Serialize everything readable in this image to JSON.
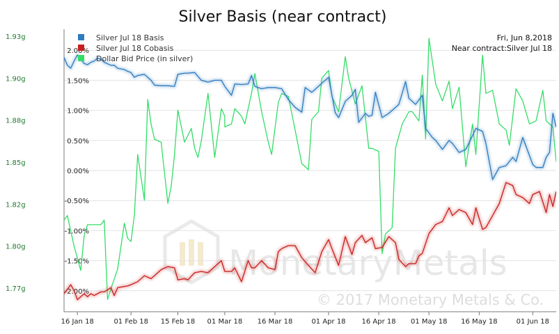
{
  "chart_data": {
    "type": "line",
    "title": "Silver Basis (near contract)",
    "left_axis": {
      "ticks": [
        "1.77g",
        "1.80g",
        "1.82g",
        "1.85g",
        "1.88g",
        "1.90g",
        "1.93g"
      ],
      "color": "#1f7a2e",
      "ylim": [
        1.757,
        1.942
      ]
    },
    "right_axis": {
      "ticks": [
        "-2.00%",
        "-1.50%",
        "-1.00%",
        "-0.50%",
        "0.00%",
        "0.50%",
        "1.00%",
        "1.50%",
        "2.00%"
      ],
      "values": [
        -2.0,
        -1.5,
        -1.0,
        -0.5,
        0.0,
        0.5,
        1.0,
        1.5,
        2.0
      ],
      "ylim": [
        -2.35,
        2.35
      ]
    },
    "x_axis": {
      "ticks": [
        "16 Jan 18",
        "01 Feb 18",
        "15 Feb 18",
        "01 Mar 18",
        "16 Mar 18",
        "01 Apr 18",
        "16 Apr 18",
        "01 May 18",
        "16 May 18",
        "01 Jun 18"
      ],
      "tick_dates": [
        "2018-01-16",
        "2018-02-01",
        "2018-02-15",
        "2018-03-01",
        "2018-03-16",
        "2018-04-01",
        "2018-04-16",
        "2018-05-01",
        "2018-05-16",
        "2018-06-01"
      ],
      "xlim": [
        "2018-01-12",
        "2018-06-08"
      ]
    },
    "legend": {
      "placement": "top-left",
      "entries": [
        "Silver Jul 18 Basis",
        "Silver Jul 18 Cobasis",
        "Dollar Bid Price (in silver)"
      ]
    },
    "info_box": {
      "date": "Fri, Jun 8,2018",
      "contract": "Near contract:Silver Jul 18"
    },
    "watermark": {
      "brand": "MonetaryMetals",
      "copyright": "© 2017 Monetary Metals & Co."
    },
    "series": [
      {
        "name": "Silver Jul 18 Basis",
        "color": "#2f7bbf",
        "axis": "right",
        "x": [
          "2018-01-12",
          "2018-01-13",
          "2018-01-14",
          "2018-01-15",
          "2018-01-16",
          "2018-01-17",
          "2018-01-18",
          "2018-01-19",
          "2018-01-20",
          "2018-01-21",
          "2018-01-22",
          "2018-01-23",
          "2018-01-24",
          "2018-01-26",
          "2018-01-27",
          "2018-01-28",
          "2018-01-30",
          "2018-01-31",
          "2018-02-01",
          "2018-02-02",
          "2018-02-03",
          "2018-02-05",
          "2018-02-06",
          "2018-02-07",
          "2018-02-08",
          "2018-02-10",
          "2018-02-12",
          "2018-02-14",
          "2018-02-15",
          "2018-02-17",
          "2018-02-18",
          "2018-02-20",
          "2018-02-22",
          "2018-02-24",
          "2018-02-26",
          "2018-02-28",
          "2018-03-01",
          "2018-03-03",
          "2018-03-04",
          "2018-03-06",
          "2018-03-08",
          "2018-03-09",
          "2018-03-10",
          "2018-03-12",
          "2018-03-14",
          "2018-03-16",
          "2018-03-18",
          "2018-03-20",
          "2018-03-22",
          "2018-03-24",
          "2018-03-25",
          "2018-03-27",
          "2018-03-28",
          "2018-03-30",
          "2018-04-01",
          "2018-04-03",
          "2018-04-04",
          "2018-04-06",
          "2018-04-08",
          "2018-04-09",
          "2018-04-10",
          "2018-04-12",
          "2018-04-13",
          "2018-04-14",
          "2018-04-15",
          "2018-04-17",
          "2018-04-19",
          "2018-04-20",
          "2018-04-22",
          "2018-04-24",
          "2018-04-25",
          "2018-04-26",
          "2018-04-27",
          "2018-04-29",
          "2018-04-30",
          "2018-05-02",
          "2018-05-03",
          "2018-05-05",
          "2018-05-07",
          "2018-05-08",
          "2018-05-10",
          "2018-05-12",
          "2018-05-14",
          "2018-05-15",
          "2018-05-17",
          "2018-05-18",
          "2018-05-20",
          "2018-05-22",
          "2018-05-24",
          "2018-05-26",
          "2018-05-27",
          "2018-05-29",
          "2018-05-31",
          "2018-06-01",
          "2018-06-02",
          "2018-06-04",
          "2018-06-05",
          "2018-06-06",
          "2018-06-07",
          "2018-06-08"
        ],
        "values": [
          1.88,
          1.75,
          1.7,
          1.82,
          1.92,
          1.85,
          1.78,
          1.76,
          1.8,
          1.82,
          1.87,
          1.85,
          1.8,
          1.75,
          1.75,
          1.7,
          1.68,
          1.65,
          1.63,
          1.55,
          1.58,
          1.6,
          1.55,
          1.5,
          1.42,
          1.41,
          1.41,
          1.4,
          1.6,
          1.62,
          1.62,
          1.63,
          1.5,
          1.47,
          1.5,
          1.5,
          1.4,
          1.25,
          1.44,
          1.43,
          1.44,
          1.58,
          1.4,
          1.36,
          1.38,
          1.38,
          1.36,
          1.18,
          1.05,
          0.97,
          1.38,
          1.3,
          1.35,
          1.45,
          1.55,
          0.96,
          0.88,
          1.15,
          1.25,
          1.35,
          0.8,
          0.95,
          0.9,
          0.92,
          1.3,
          0.88,
          0.95,
          1.0,
          1.1,
          1.48,
          1.2,
          1.15,
          1.1,
          1.25,
          0.7,
          0.55,
          0.5,
          0.35,
          0.5,
          0.45,
          0.3,
          0.35,
          0.58,
          0.7,
          0.65,
          0.45,
          -0.15,
          0.05,
          0.08,
          0.22,
          0.15,
          0.55,
          0.25,
          0.1,
          0.05,
          0.05,
          0.22,
          0.3,
          0.95,
          0.72
        ]
      },
      {
        "name": "Silver Jul 18 Cobasis",
        "color": "#c8201e",
        "axis": "right",
        "x": [
          "2018-01-12",
          "2018-01-14",
          "2018-01-15",
          "2018-01-16",
          "2018-01-18",
          "2018-01-19",
          "2018-01-20",
          "2018-01-21",
          "2018-01-23",
          "2018-01-24",
          "2018-01-26",
          "2018-01-27",
          "2018-01-28",
          "2018-01-30",
          "2018-01-31",
          "2018-02-01",
          "2018-02-03",
          "2018-02-05",
          "2018-02-07",
          "2018-02-08",
          "2018-02-10",
          "2018-02-12",
          "2018-02-14",
          "2018-02-15",
          "2018-02-17",
          "2018-02-18",
          "2018-02-20",
          "2018-02-22",
          "2018-02-24",
          "2018-02-26",
          "2018-02-28",
          "2018-03-01",
          "2018-03-03",
          "2018-03-04",
          "2018-03-06",
          "2018-03-08",
          "2018-03-09",
          "2018-03-10",
          "2018-03-12",
          "2018-03-14",
          "2018-03-16",
          "2018-03-17",
          "2018-03-18",
          "2018-03-20",
          "2018-03-22",
          "2018-03-24",
          "2018-03-26",
          "2018-03-28",
          "2018-03-30",
          "2018-04-01",
          "2018-04-02",
          "2018-04-04",
          "2018-04-06",
          "2018-04-08",
          "2018-04-09",
          "2018-04-11",
          "2018-04-12",
          "2018-04-14",
          "2018-04-15",
          "2018-04-17",
          "2018-04-19",
          "2018-04-21",
          "2018-04-22",
          "2018-04-24",
          "2018-04-25",
          "2018-04-27",
          "2018-04-28",
          "2018-04-29",
          "2018-05-01",
          "2018-05-03",
          "2018-05-05",
          "2018-05-07",
          "2018-05-08",
          "2018-05-10",
          "2018-05-12",
          "2018-05-14",
          "2018-05-15",
          "2018-05-17",
          "2018-05-18",
          "2018-05-20",
          "2018-05-22",
          "2018-05-24",
          "2018-05-26",
          "2018-05-27",
          "2018-05-29",
          "2018-05-31",
          "2018-06-01",
          "2018-06-03",
          "2018-06-05",
          "2018-06-06",
          "2018-06-07",
          "2018-06-08"
        ],
        "values": [
          -2.05,
          -1.9,
          -2.0,
          -2.15,
          -2.05,
          -2.1,
          -2.05,
          -2.08,
          -2.02,
          -2.02,
          -1.95,
          -2.08,
          -1.95,
          -1.93,
          -1.92,
          -1.9,
          -1.85,
          -1.75,
          -1.8,
          -1.75,
          -1.65,
          -1.6,
          -1.62,
          -1.82,
          -1.8,
          -1.82,
          -1.7,
          -1.68,
          -1.7,
          -1.6,
          -1.5,
          -1.68,
          -1.68,
          -1.62,
          -1.85,
          -1.5,
          -1.62,
          -1.62,
          -1.5,
          -1.62,
          -1.65,
          -1.35,
          -1.3,
          -1.25,
          -1.25,
          -1.45,
          -1.58,
          -1.7,
          -1.35,
          -1.15,
          -1.3,
          -1.58,
          -1.1,
          -1.4,
          -1.2,
          -1.08,
          -1.2,
          -1.12,
          -1.3,
          -1.28,
          -1.1,
          -1.2,
          -1.48,
          -1.6,
          -1.55,
          -1.55,
          -1.42,
          -1.38,
          -1.05,
          -0.9,
          -0.85,
          -0.62,
          -0.75,
          -0.65,
          -0.7,
          -0.9,
          -0.62,
          -0.98,
          -0.95,
          -0.75,
          -0.55,
          -0.2,
          -0.25,
          -0.4,
          -0.45,
          -0.55,
          -0.4,
          -0.35,
          -0.7,
          -0.4,
          -0.6,
          -0.35
        ]
      },
      {
        "name": "Dollar Bid Price (in silver)",
        "color": "#33dd66",
        "axis": "left",
        "x": [
          "2018-01-12",
          "2018-01-13",
          "2018-01-15",
          "2018-01-17",
          "2018-01-18",
          "2018-01-19",
          "2018-01-21",
          "2018-01-23",
          "2018-01-24",
          "2018-01-25",
          "2018-01-26",
          "2018-01-28",
          "2018-01-30",
          "2018-01-31",
          "2018-02-01",
          "2018-02-02",
          "2018-02-03",
          "2018-02-05",
          "2018-02-06",
          "2018-02-07",
          "2018-02-08",
          "2018-02-10",
          "2018-02-12",
          "2018-02-13",
          "2018-02-14",
          "2018-02-15",
          "2018-02-17",
          "2018-02-19",
          "2018-02-20",
          "2018-02-21",
          "2018-02-22",
          "2018-02-24",
          "2018-02-26",
          "2018-02-28",
          "2018-02-29",
          "2018-03-01",
          "2018-03-03",
          "2018-03-04",
          "2018-03-06",
          "2018-03-07",
          "2018-03-09",
          "2018-03-10",
          "2018-03-12",
          "2018-03-14",
          "2018-03-15",
          "2018-03-17",
          "2018-03-18",
          "2018-03-20",
          "2018-03-22",
          "2018-03-24",
          "2018-03-26",
          "2018-03-27",
          "2018-03-29",
          "2018-03-30",
          "2018-04-01",
          "2018-04-02",
          "2018-04-04",
          "2018-04-06",
          "2018-04-07",
          "2018-04-09",
          "2018-04-11",
          "2018-04-13",
          "2018-04-14",
          "2018-04-16",
          "2018-04-17",
          "2018-04-18",
          "2018-04-20",
          "2018-04-21",
          "2018-04-23",
          "2018-04-25",
          "2018-04-26",
          "2018-04-28",
          "2018-04-29",
          "2018-04-30",
          "2018-05-01",
          "2018-05-03",
          "2018-05-05",
          "2018-05-07",
          "2018-05-08",
          "2018-05-10",
          "2018-05-12",
          "2018-05-14",
          "2018-05-15",
          "2018-05-17",
          "2018-05-18",
          "2018-05-20",
          "2018-05-22",
          "2018-05-24",
          "2018-05-25",
          "2018-05-27",
          "2018-05-29",
          "2018-05-31",
          "2018-06-02",
          "2018-06-04",
          "2018-06-05",
          "2018-06-07",
          "2018-06-08"
        ],
        "values": [
          1.817,
          1.82,
          1.8,
          1.784,
          1.807,
          1.814,
          1.814,
          1.814,
          1.817,
          1.765,
          1.772,
          1.785,
          1.815,
          1.805,
          1.803,
          1.82,
          1.86,
          1.83,
          1.896,
          1.88,
          1.87,
          1.868,
          1.828,
          1.839,
          1.86,
          1.889,
          1.868,
          1.877,
          1.864,
          1.858,
          1.869,
          1.9,
          1.858,
          1.89,
          1.885,
          1.878,
          1.88,
          1.89,
          1.885,
          1.88,
          1.9,
          1.913,
          1.888,
          1.868,
          1.86,
          1.894,
          1.9,
          1.898,
          1.876,
          1.854,
          1.85,
          1.883,
          1.888,
          1.91,
          1.915,
          1.898,
          1.888,
          1.924,
          1.91,
          1.893,
          1.905,
          1.864,
          1.864,
          1.862,
          1.795,
          1.808,
          1.812,
          1.864,
          1.88,
          1.888,
          1.888,
          1.882,
          1.912,
          1.87,
          1.936,
          1.906,
          1.895,
          1.908,
          1.89,
          1.904,
          1.852,
          1.88,
          1.86,
          1.925,
          1.9,
          1.902,
          1.88,
          1.876,
          1.866,
          1.903,
          1.895,
          1.88,
          1.882,
          1.902,
          1.882,
          1.878,
          1.855
        ]
      }
    ]
  }
}
